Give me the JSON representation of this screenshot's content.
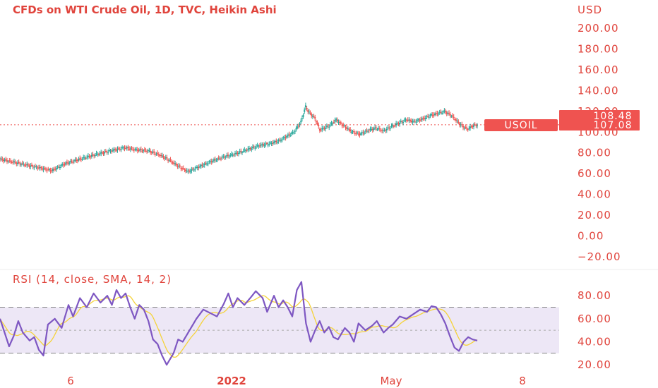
{
  "colors": {
    "up": "#26a69a",
    "down": "#ef5350",
    "text": "#e0443c",
    "rsi_line": "#7e57c2",
    "rsi_ma": "#f5d33a",
    "rsi_band": "#ede7f6",
    "badge": "#ef5350"
  },
  "chart_data": [
    {
      "type": "candlestick",
      "title": "CFDs on WTI Crude Oil, 1D, TVC, Heikin Ashi",
      "currency": "USD",
      "symbol": "USOIL",
      "price_labels": [
        "108.48",
        "107.08"
      ],
      "current_price": 107.08,
      "y_ticks": [
        200,
        180,
        160,
        140,
        120,
        100,
        80,
        60,
        40,
        20,
        0,
        -20
      ],
      "y_tick_labels": [
        "200.00",
        "180.00",
        "160.00",
        "140.00",
        "120.00",
        "100.00",
        "80.00",
        "60.00",
        "40.00",
        "20.00",
        "0.00",
        "−20.00"
      ],
      "ylim": [
        -20,
        200
      ],
      "x_labels": [
        "6",
        "2022",
        "May",
        "8"
      ],
      "grid": false,
      "close_anchors": [
        [
          0,
          74
        ],
        [
          12,
          71
        ],
        [
          24,
          68
        ],
        [
          36,
          65
        ],
        [
          44,
          63
        ],
        [
          56,
          70
        ],
        [
          68,
          74
        ],
        [
          80,
          78
        ],
        [
          94,
          82
        ],
        [
          106,
          85
        ],
        [
          116,
          83
        ],
        [
          126,
          82
        ],
        [
          136,
          78
        ],
        [
          144,
          73
        ],
        [
          152,
          67
        ],
        [
          160,
          62
        ],
        [
          170,
          67
        ],
        [
          180,
          72
        ],
        [
          190,
          76
        ],
        [
          200,
          79
        ],
        [
          210,
          83
        ],
        [
          220,
          87
        ],
        [
          230,
          89
        ],
        [
          238,
          92
        ],
        [
          244,
          96
        ],
        [
          250,
          100
        ],
        [
          256,
          110
        ],
        [
          260,
          125
        ],
        [
          262,
          120
        ],
        [
          268,
          113
        ],
        [
          272,
          102
        ],
        [
          280,
          106
        ],
        [
          286,
          112
        ],
        [
          290,
          108
        ],
        [
          296,
          103
        ],
        [
          300,
          100
        ],
        [
          306,
          98
        ],
        [
          314,
          102
        ],
        [
          320,
          104
        ],
        [
          326,
          101
        ],
        [
          334,
          106
        ],
        [
          340,
          109
        ],
        [
          346,
          112
        ],
        [
          352,
          110
        ],
        [
          360,
          113
        ],
        [
          366,
          116
        ],
        [
          372,
          118
        ],
        [
          378,
          120
        ],
        [
          384,
          116
        ],
        [
          390,
          109
        ],
        [
          394,
          105
        ],
        [
          398,
          103
        ],
        [
          402,
          106
        ],
        [
          406,
          107.08
        ]
      ]
    },
    {
      "type": "line",
      "title": "RSI (14, close, SMA, 14, 2)",
      "y_ticks": [
        80,
        60,
        40,
        20
      ],
      "y_tick_labels": [
        "80.00",
        "60.00",
        "40.00",
        "20.00"
      ],
      "ylim": [
        17,
        93
      ],
      "band": [
        30,
        70
      ],
      "midline": 50,
      "rsi_anchors": [
        [
          0,
          60
        ],
        [
          4,
          48
        ],
        [
          8,
          36
        ],
        [
          12,
          45
        ],
        [
          16,
          58
        ],
        [
          20,
          48
        ],
        [
          26,
          41
        ],
        [
          30,
          44
        ],
        [
          34,
          33
        ],
        [
          38,
          28
        ],
        [
          42,
          55
        ],
        [
          48,
          60
        ],
        [
          54,
          52
        ],
        [
          60,
          72
        ],
        [
          64,
          62
        ],
        [
          70,
          78
        ],
        [
          76,
          70
        ],
        [
          82,
          82
        ],
        [
          88,
          74
        ],
        [
          94,
          80
        ],
        [
          98,
          72
        ],
        [
          102,
          85
        ],
        [
          106,
          78
        ],
        [
          110,
          82
        ],
        [
          114,
          70
        ],
        [
          118,
          60
        ],
        [
          122,
          72
        ],
        [
          126,
          68
        ],
        [
          130,
          58
        ],
        [
          134,
          42
        ],
        [
          138,
          38
        ],
        [
          142,
          28
        ],
        [
          146,
          20
        ],
        [
          152,
          30
        ],
        [
          156,
          42
        ],
        [
          160,
          40
        ],
        [
          166,
          50
        ],
        [
          172,
          60
        ],
        [
          178,
          68
        ],
        [
          184,
          65
        ],
        [
          190,
          62
        ],
        [
          196,
          73
        ],
        [
          200,
          82
        ],
        [
          204,
          70
        ],
        [
          208,
          78
        ],
        [
          214,
          72
        ],
        [
          220,
          79
        ],
        [
          224,
          84
        ],
        [
          230,
          78
        ],
        [
          234,
          66
        ],
        [
          240,
          80
        ],
        [
          244,
          70
        ],
        [
          248,
          76
        ],
        [
          252,
          70
        ],
        [
          256,
          62
        ],
        [
          260,
          85
        ],
        [
          264,
          92
        ],
        [
          268,
          56
        ],
        [
          272,
          40
        ],
        [
          276,
          50
        ],
        [
          280,
          58
        ],
        [
          284,
          48
        ],
        [
          288,
          53
        ],
        [
          292,
          44
        ],
        [
          296,
          42
        ],
        [
          302,
          52
        ],
        [
          306,
          48
        ],
        [
          310,
          40
        ],
        [
          314,
          56
        ],
        [
          320,
          50
        ],
        [
          326,
          54
        ],
        [
          330,
          58
        ],
        [
          336,
          48
        ],
        [
          340,
          52
        ],
        [
          344,
          55
        ],
        [
          350,
          62
        ],
        [
          356,
          60
        ],
        [
          362,
          64
        ],
        [
          368,
          68
        ],
        [
          374,
          66
        ],
        [
          378,
          71
        ],
        [
          382,
          70
        ],
        [
          386,
          64
        ],
        [
          390,
          56
        ],
        [
          394,
          45
        ],
        [
          398,
          35
        ],
        [
          402,
          32
        ],
        [
          406,
          40
        ],
        [
          410,
          44
        ],
        [
          414,
          42
        ],
        [
          418,
          41
        ]
      ]
    }
  ]
}
